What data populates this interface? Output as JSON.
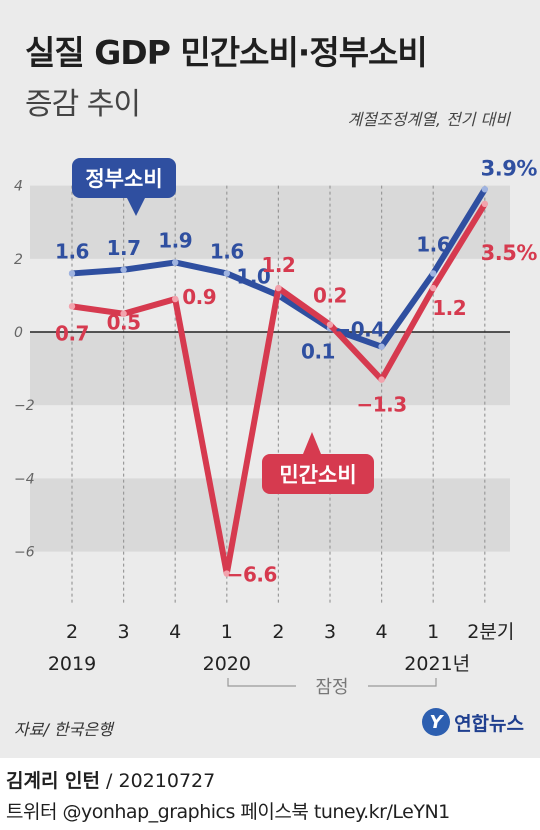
{
  "header": {
    "title": "실질 GDP 민간소비·정부소비",
    "subtitle": "증감 추이",
    "note": "계절조정계열, 전기 대비"
  },
  "chart_data": {
    "type": "line",
    "title": "실질 GDP 민간소비·정부소비 증감 추이",
    "subtitle": "증감 추이",
    "x": [
      "2",
      "3",
      "4",
      "1",
      "2",
      "3",
      "4",
      "1",
      "2분기"
    ],
    "year_labels": [
      {
        "text": "2019",
        "index": 0
      },
      {
        "text": "2020",
        "index": 3
      },
      {
        "text": "2021년",
        "index": 7
      }
    ],
    "ylim": [
      -6.6,
      4.0
    ],
    "yticks": [
      "4",
      "2",
      "0",
      "−2",
      "−4",
      "−6"
    ],
    "ytick_values": [
      4,
      2,
      0,
      -2,
      -4,
      -6
    ],
    "grid": true,
    "preliminary_label": "잠정",
    "preliminary_range": [
      7,
      8
    ],
    "series": [
      {
        "name": "정부소비",
        "color": "#2f4fa0",
        "values": [
          1.6,
          1.7,
          1.9,
          1.6,
          1.0,
          0.1,
          -0.4,
          1.6,
          3.9
        ],
        "labels": [
          "1.6",
          "1.7",
          "1.9",
          "1.6",
          "1.0",
          "0.1",
          "−0.4",
          "1.6",
          "3.9%"
        ]
      },
      {
        "name": "민간소비",
        "color": "#d63a4f",
        "values": [
          0.7,
          0.5,
          0.9,
          -6.6,
          1.2,
          0.2,
          -1.3,
          1.2,
          3.5
        ],
        "labels": [
          "0.7",
          "0.5",
          "0.9",
          "−6.6",
          "1.2",
          "0.2",
          "−1.3",
          "1.2",
          "3.5%"
        ]
      }
    ]
  },
  "footer": {
    "source": "자료/ 한국은행",
    "brand": "연합뉴스",
    "brand_logo_letter": "Y",
    "credit_name": "김계리 인턴",
    "credit_date": " / 20210727",
    "social": "트위터 @yonhap_graphics  페이스북 tuney.kr/LeYN1"
  }
}
